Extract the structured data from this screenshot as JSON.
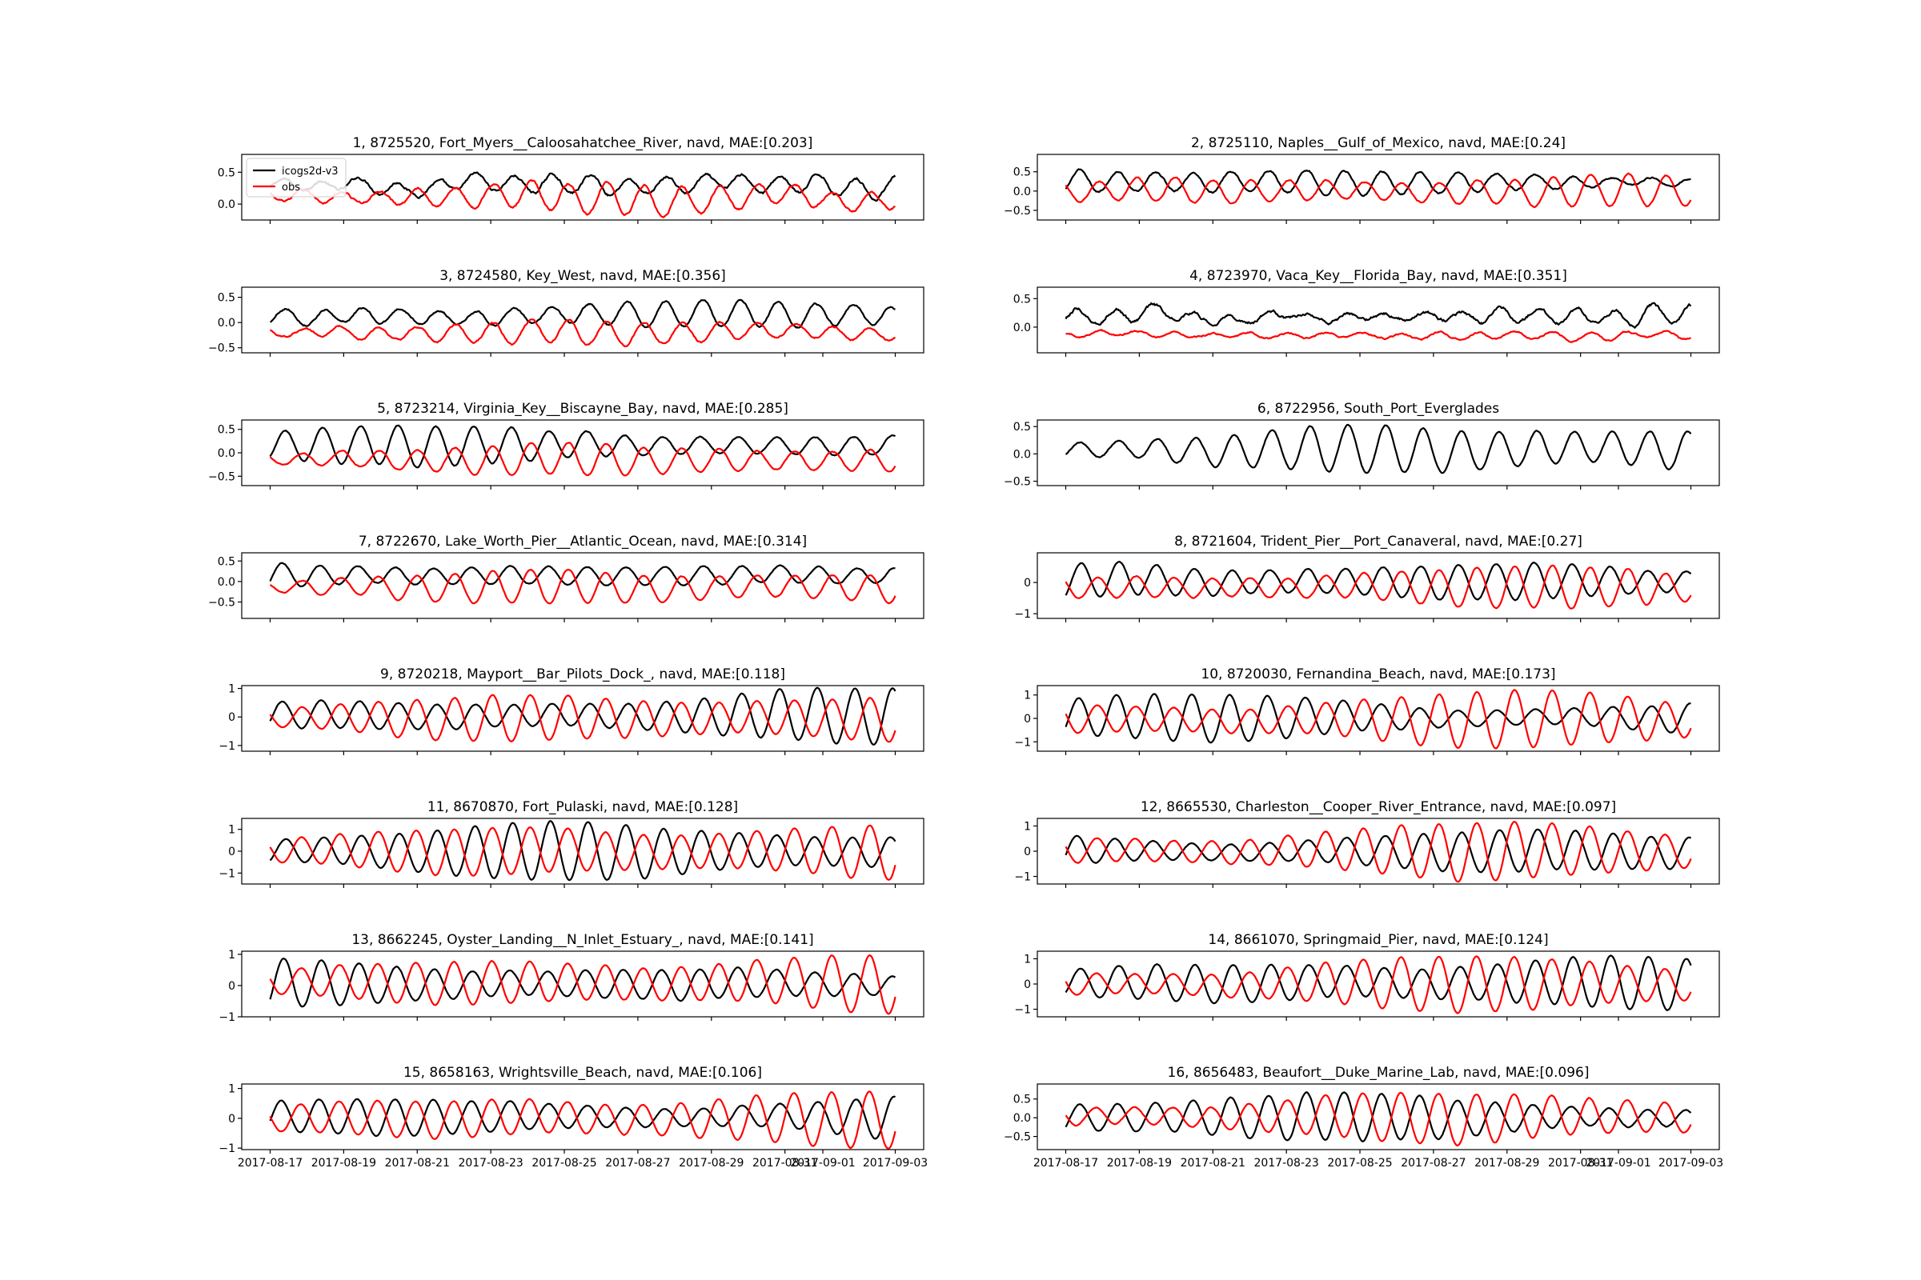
{
  "chart_data": {
    "type": "line",
    "layout": "8x2 grid of subplots",
    "x_tick_labels": [
      "2017-08-17",
      "2017-08-19",
      "2017-08-21",
      "2017-08-23",
      "2017-08-25",
      "2017-08-27",
      "2017-08-29",
      "2017-08-31",
      "2017-09-01",
      "2017-09-03"
    ],
    "x_tick_days": [
      0,
      2,
      4,
      6,
      8,
      10,
      12,
      14,
      15.03,
      17
    ],
    "x_range_days": [
      0,
      17
    ],
    "legend": {
      "location": "upper-left of first subplot",
      "entries": [
        {
          "label": "icogs2d-v3",
          "color": "#000000"
        },
        {
          "label": "obs",
          "color": "#ff0000"
        }
      ]
    },
    "series_colors": {
      "model": "#000000",
      "obs": "#ff0000"
    },
    "subplots": [
      {
        "title": "1, 8725520, Fort_Myers__Caloosahatchee_River, navd, MAE:[0.203]",
        "ylim": [
          -0.25,
          0.78
        ],
        "yticks": [
          0.0,
          0.5
        ],
        "ytick_labels": [
          "0.0",
          "0.5"
        ],
        "has_obs": true,
        "model": {
          "mean": 0.3,
          "amp": 0.2,
          "noise": 0.06
        },
        "obs": {
          "mean": 0.1,
          "amp": 0.2,
          "noise": 0.05
        }
      },
      {
        "title": "2, 8725110, Naples__Gulf_of_Mexico, navd, MAE:[0.24]",
        "ylim": [
          -0.75,
          0.95
        ],
        "yticks": [
          -0.5,
          0.0,
          0.5
        ],
        "ytick_labels": [
          "−0.5",
          "0.0",
          "0.5"
        ],
        "has_obs": true,
        "model": {
          "mean": 0.25,
          "amp": 0.35,
          "noise": 0.06
        },
        "obs": {
          "mean": 0.0,
          "amp": 0.35,
          "noise": 0.05
        }
      },
      {
        "title": "3, 8724580, Key_West, navd, MAE:[0.356]",
        "ylim": [
          -0.6,
          0.7
        ],
        "yticks": [
          -0.5,
          0.0,
          0.5
        ],
        "ytick_labels": [
          "−0.5",
          "0.0",
          "0.5"
        ],
        "has_obs": true,
        "model": {
          "mean": 0.15,
          "amp": 0.22,
          "noise": 0.05
        },
        "obs": {
          "mean": -0.2,
          "amp": 0.2,
          "noise": 0.05
        }
      },
      {
        "title": "4, 8723970, Vaca_Key__Florida_Bay, navd, MAE:[0.351]",
        "ylim": [
          -0.45,
          0.7
        ],
        "yticks": [
          0.0,
          0.5
        ],
        "ytick_labels": [
          "0.0",
          "0.5"
        ],
        "has_obs": true,
        "model": {
          "mean": 0.2,
          "amp": 0.15,
          "noise": 0.08
        },
        "obs": {
          "mean": -0.15,
          "amp": 0.06,
          "noise": 0.04
        }
      },
      {
        "title": "5, 8723214, Virginia_Key__Biscayne_Bay, navd, MAE:[0.285]",
        "ylim": [
          -0.7,
          0.7
        ],
        "yticks": [
          -0.5,
          0.0,
          0.5
        ],
        "ytick_labels": [
          "−0.5",
          "0.0",
          "0.5"
        ],
        "has_obs": true,
        "model": {
          "mean": 0.15,
          "amp": 0.35,
          "noise": 0.03
        },
        "obs": {
          "mean": -0.15,
          "amp": 0.3,
          "noise": 0.03
        }
      },
      {
        "title": "6, 8722956, South_Port_Everglades",
        "ylim": [
          -0.58,
          0.62
        ],
        "yticks": [
          -0.5,
          0.0,
          0.5
        ],
        "ytick_labels": [
          "−0.5",
          "0.0",
          "0.5"
        ],
        "has_obs": false,
        "model": {
          "mean": 0.08,
          "amp": 0.42,
          "noise": 0.03
        },
        "obs": null
      },
      {
        "title": "7, 8722670, Lake_Worth_Pier__Atlantic_Ocean, navd, MAE:[0.314]",
        "ylim": [
          -0.9,
          0.7
        ],
        "yticks": [
          -0.5,
          0.0,
          0.5
        ],
        "ytick_labels": [
          "−0.5",
          "0.0",
          "0.5"
        ],
        "has_obs": true,
        "model": {
          "mean": 0.15,
          "amp": 0.38,
          "noise": 0.03
        },
        "obs": {
          "mean": -0.15,
          "amp": 0.38,
          "noise": 0.03
        }
      },
      {
        "title": "8, 8721604, Trident_Pier__Port_Canaveral, navd, MAE:[0.27]",
        "ylim": [
          -1.15,
          0.95
        ],
        "yticks": [
          -1,
          0
        ],
        "ytick_labels": [
          "−1",
          "0"
        ],
        "has_obs": true,
        "model": {
          "mean": 0.05,
          "amp": 0.55,
          "noise": 0.04
        },
        "obs": {
          "mean": -0.15,
          "amp": 0.55,
          "noise": 0.04
        }
      },
      {
        "title": "9, 8720218, Mayport__Bar_Pilots_Dock_, navd, MAE:[0.118]",
        "ylim": [
          -1.2,
          1.1
        ],
        "yticks": [
          -1,
          0,
          1
        ],
        "ytick_labels": [
          "−1",
          "0",
          "1"
        ],
        "has_obs": true,
        "model": {
          "mean": 0.05,
          "amp": 0.8,
          "noise": 0.03
        },
        "obs": {
          "mean": -0.05,
          "amp": 0.8,
          "noise": 0.03
        }
      },
      {
        "title": "10, 8720030, Fernandina_Beach, navd, MAE:[0.173]",
        "ylim": [
          -1.4,
          1.4
        ],
        "yticks": [
          -1,
          0,
          1
        ],
        "ytick_labels": [
          "−1",
          "0",
          "1"
        ],
        "has_obs": true,
        "model": {
          "mean": 0.05,
          "amp": 0.95,
          "noise": 0.03
        },
        "obs": {
          "mean": -0.05,
          "amp": 1.0,
          "noise": 0.03
        }
      },
      {
        "title": "11, 8670870, Fort_Pulaski, navd, MAE:[0.128]",
        "ylim": [
          -1.5,
          1.5
        ],
        "yticks": [
          -1,
          0,
          1
        ],
        "ytick_labels": [
          "−1",
          "0",
          "1"
        ],
        "has_obs": true,
        "model": {
          "mean": 0.0,
          "amp": 1.1,
          "noise": 0.03
        },
        "obs": {
          "mean": 0.0,
          "amp": 1.15,
          "noise": 0.03
        }
      },
      {
        "title": "12, 8665530, Charleston__Cooper_River_Entrance, navd, MAE:[0.097]",
        "ylim": [
          -1.3,
          1.3
        ],
        "yticks": [
          -1,
          0,
          1
        ],
        "ytick_labels": [
          "−1",
          "0",
          "1"
        ],
        "has_obs": true,
        "model": {
          "mean": 0.0,
          "amp": 0.95,
          "noise": 0.03
        },
        "obs": {
          "mean": 0.02,
          "amp": 0.95,
          "noise": 0.03
        }
      },
      {
        "title": "13, 8662245, Oyster_Landing__N_Inlet_Estuary_, navd, MAE:[0.141]",
        "ylim": [
          -1.0,
          1.1
        ],
        "yticks": [
          -1,
          0,
          1
        ],
        "ytick_labels": [
          "−1",
          "0",
          "1"
        ],
        "has_obs": true,
        "model": {
          "mean": 0.05,
          "amp": 0.65,
          "noise": 0.03
        },
        "obs": {
          "mean": 0.1,
          "amp": 0.8,
          "noise": 0.03
        }
      },
      {
        "title": "14, 8661070, Springmaid_Pier, navd, MAE:[0.124]",
        "ylim": [
          -1.3,
          1.3
        ],
        "yticks": [
          -1,
          0,
          1
        ],
        "ytick_labels": [
          "−1",
          "0",
          "1"
        ],
        "has_obs": true,
        "model": {
          "mean": 0.05,
          "amp": 0.9,
          "noise": 0.03
        },
        "obs": {
          "mean": 0.0,
          "amp": 0.95,
          "noise": 0.03
        }
      },
      {
        "title": "15, 8658163, Wrightsville_Beach, navd, MAE:[0.106]",
        "ylim": [
          -1.05,
          1.15
        ],
        "yticks": [
          -1,
          0,
          1
        ],
        "ytick_labels": [
          "−1",
          "0",
          "1"
        ],
        "has_obs": true,
        "model": {
          "mean": 0.05,
          "amp": 0.8,
          "noise": 0.03
        },
        "obs": {
          "mean": -0.02,
          "amp": 0.8,
          "noise": 0.03
        }
      },
      {
        "title": "16, 8656483, Beaufort__Duke_Marine_Lab, navd, MAE:[0.096]",
        "ylim": [
          -0.85,
          0.9
        ],
        "yticks": [
          -0.5,
          0.0,
          0.5
        ],
        "ytick_labels": [
          "−0.5",
          "0.0",
          "0.5"
        ],
        "has_obs": true,
        "model": {
          "mean": 0.0,
          "amp": 0.55,
          "noise": 0.03
        },
        "obs": {
          "mean": 0.02,
          "amp": 0.6,
          "noise": 0.03
        }
      }
    ]
  }
}
